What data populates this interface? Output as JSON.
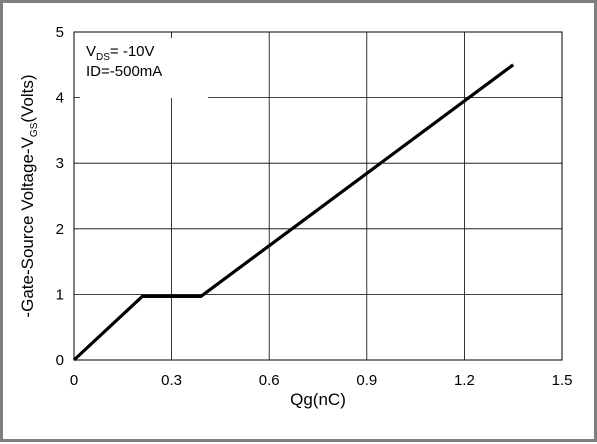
{
  "chart_data": {
    "type": "line",
    "title": "",
    "xlabel": "Qg(nC)",
    "ylabel": {
      "prefix": "-Gate-Source Voltage-V",
      "sub": "GS",
      "suffix": "(Volts)"
    },
    "xlim": [
      0,
      1.5
    ],
    "ylim": [
      0,
      5
    ],
    "xticks": [
      "0",
      "0.3",
      "0.6",
      "0.9",
      "1.2",
      "1.5"
    ],
    "yticks": [
      "0",
      "1",
      "2",
      "3",
      "4",
      "5"
    ],
    "xtick_values": [
      0,
      0.3,
      0.6,
      0.9,
      1.2,
      1.5
    ],
    "ytick_values": [
      0,
      1,
      2,
      3,
      4,
      5
    ],
    "grid": true,
    "series": [
      {
        "color": "#000000",
        "x": [
          0,
          0.21,
          0.39,
          1.35
        ],
        "y": [
          0,
          0.97,
          0.97,
          4.5
        ]
      }
    ],
    "annotations": {
      "line1_prefix": "V",
      "line1_sub": "DS",
      "line1_suffix": "= -10V",
      "line2": "ID=-500mA"
    }
  }
}
